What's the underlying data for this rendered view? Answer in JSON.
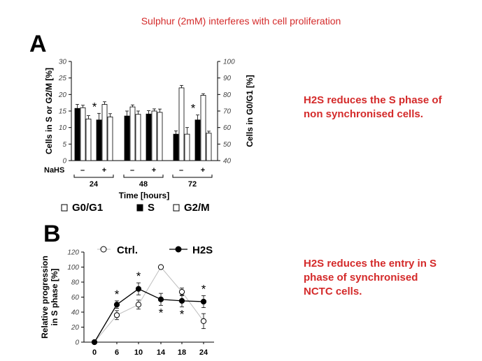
{
  "slide": {
    "title": "Sulphur (2mM) interferes with cell proliferation"
  },
  "panels": {
    "a_letter": "A",
    "b_letter": "B"
  },
  "notes": {
    "a_line1": "H2S reduces the S phase of",
    "a_line2": "non synchronised cells.",
    "b_line1": "H2S reduces the entry in S",
    "b_line2": "phase of synchronised",
    "b_line3": "NCTC cells."
  },
  "chart_data": [
    {
      "type": "bar",
      "ylabel_left": "Cells in S or G2/M [%]",
      "ylabel_right": "Cells in G0/G1 [%]",
      "ylim_left": [
        0,
        30
      ],
      "ylim_right": [
        40,
        100
      ],
      "yticks_left": [
        "0",
        "5",
        "10",
        "15",
        "20",
        "25",
        "30"
      ],
      "yticks_right": [
        "40",
        "50",
        "60",
        "70",
        "80",
        "90",
        "100"
      ],
      "xlabel": "Time [hours]",
      "treatment_label": "NaHS",
      "treatment_levels": [
        "–",
        "+"
      ],
      "groups": [
        "24",
        "48",
        "72"
      ],
      "legend": [
        "G0/G1",
        "S",
        "G2/M"
      ],
      "colors": {
        "S": "#000000",
        "G0G1": "#ffffff",
        "G2M": "#ffffff"
      },
      "bars": [
        {
          "time": "24",
          "nahs": "–",
          "S": 15.8,
          "G0G1_right_axis": 72,
          "G2M": 12.6,
          "err": [
            1.2,
            1.5,
            1.0
          ],
          "star": ""
        },
        {
          "time": "24",
          "nahs": "+",
          "S": 12.3,
          "G0G1_right_axis": 74,
          "G2M": 13.2,
          "err": [
            2.0,
            1.6,
            1.0
          ],
          "star": "*"
        },
        {
          "time": "48",
          "nahs": "–",
          "S": 13.5,
          "G0G1_right_axis": 72.5,
          "G2M": 14.0,
          "err": [
            1.5,
            1.2,
            1.0
          ],
          "star": ""
        },
        {
          "time": "48",
          "nahs": "+",
          "S": 14.1,
          "G0G1_right_axis": 70,
          "G2M": 14.6,
          "err": [
            1.0,
            1.3,
            1.0
          ],
          "star": ""
        },
        {
          "time": "72",
          "nahs": "–",
          "S": 8.0,
          "G0G1_right_axis": 84,
          "G2M": 8.0,
          "err": [
            1.0,
            1.5,
            2.0
          ],
          "star": ""
        },
        {
          "time": "72",
          "nahs": "+",
          "S": 12.3,
          "G0G1_right_axis": 79.5,
          "G2M": 8.3,
          "err": [
            1.5,
            1.0,
            0.6
          ],
          "star": "*"
        }
      ]
    },
    {
      "type": "line",
      "ylabel": "Relative progression in S phase [%]",
      "ylabel_line1": "Relative progression",
      "ylabel_line2": "in S phase [%]",
      "ylim": [
        0,
        120
      ],
      "yticks": [
        "0",
        "20",
        "40",
        "60",
        "80",
        "100",
        "120"
      ],
      "x": [
        0,
        6,
        10,
        14,
        18,
        24
      ],
      "x_labels": [
        "0",
        "6",
        "10",
        "14",
        "18",
        "24"
      ],
      "legend_ctrl": "Ctrl.",
      "legend_h2s": "H2S",
      "series": [
        {
          "name": "Ctrl.",
          "values": [
            0,
            36,
            50,
            100,
            67,
            28
          ],
          "err": [
            0,
            6,
            6,
            0,
            5,
            10
          ],
          "marker": "open-circle",
          "color": "#bfbfbf"
        },
        {
          "name": "H2S",
          "values": [
            0,
            50,
            71,
            57,
            55,
            54
          ],
          "err": [
            0,
            5,
            8,
            8,
            8,
            8
          ],
          "marker": "filled-circle",
          "color": "#000000"
        }
      ],
      "stars_above": [
        6,
        10,
        24
      ],
      "stars_below": [
        14,
        18
      ]
    }
  ]
}
